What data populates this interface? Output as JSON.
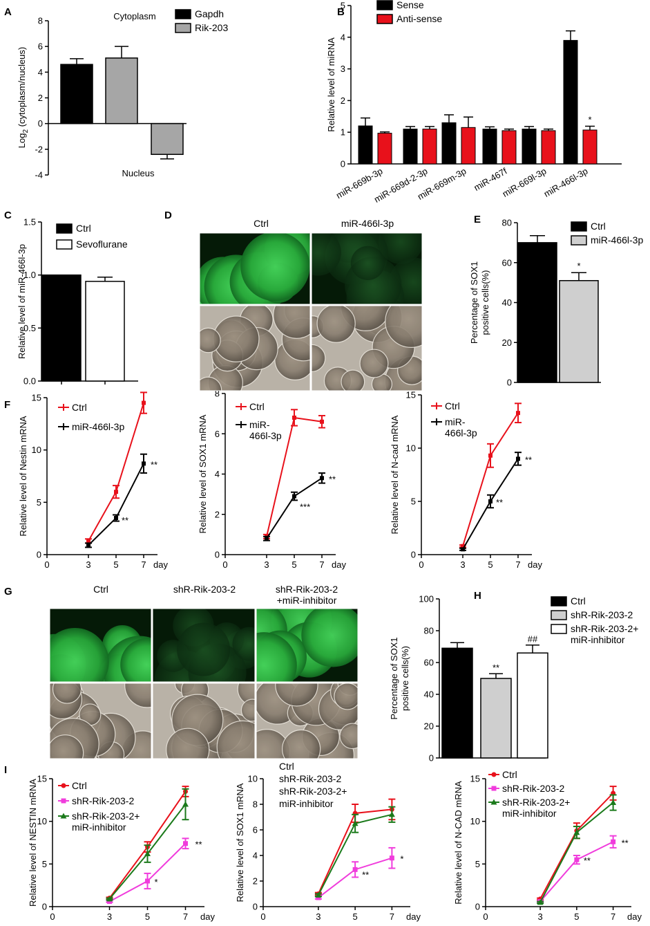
{
  "panels": {
    "A": "A",
    "B": "B",
    "C": "C",
    "D": "D",
    "E": "E",
    "F": "F",
    "G": "G",
    "H": "H",
    "I": "I"
  },
  "colors": {
    "black": "#000000",
    "gray": "#a6a6a6",
    "red": "#e8111b",
    "white": "#ffffff",
    "lightgray": "#cfcfcf",
    "magenta": "#f03cdc",
    "green": "#1b7a1b",
    "fluor": "#2fa84a"
  },
  "chart_data": [
    {
      "id": "A",
      "type": "bar",
      "ylabel": "Log2 (cytoplasm/nucleus)",
      "ylim": [
        -4,
        8
      ],
      "yticks": [
        -4,
        -2,
        0,
        2,
        4,
        6,
        8
      ],
      "legend": [
        "Gapdh",
        "Rik-203"
      ],
      "legend_colors": [
        "#000000",
        "#a6a6a6"
      ],
      "bars": [
        {
          "series": "Gapdh",
          "value": 4.6,
          "err": 0.45,
          "color": "#000000"
        },
        {
          "series": "Rik-203",
          "value": 5.1,
          "err": 0.9,
          "color": "#a6a6a6"
        },
        {
          "series": "Rik-203",
          "value": -2.4,
          "err": 0.35,
          "color": "#a6a6a6"
        }
      ],
      "annotations": [
        "Cytoplasm",
        "Nucleus"
      ]
    },
    {
      "id": "B",
      "type": "bar",
      "ylabel": "Relative level of miRNA",
      "ylim": [
        0,
        5
      ],
      "yticks": [
        0,
        1,
        2,
        3,
        4,
        5
      ],
      "legend": [
        "Sense",
        "Anti-sense"
      ],
      "legend_colors": [
        "#000000",
        "#e8111b"
      ],
      "categories": [
        "miR-669b-3p",
        "miR-669d-2-3p",
        "miR-669m-3p",
        "miR-467f",
        "miR-669l-3p",
        "miR-466l-3p"
      ],
      "series": [
        {
          "name": "Sense",
          "values": [
            1.2,
            1.1,
            1.3,
            1.1,
            1.1,
            3.9
          ],
          "err": [
            0.25,
            0.08,
            0.25,
            0.07,
            0.08,
            0.3
          ]
        },
        {
          "name": "Anti-sense",
          "values": [
            0.97,
            1.1,
            1.15,
            1.05,
            1.05,
            1.07
          ],
          "err": [
            0.04,
            0.08,
            0.33,
            0.05,
            0.05,
            0.12
          ]
        }
      ],
      "significance": [
        {
          "index": 5,
          "series": 1,
          "mark": "*"
        }
      ]
    },
    {
      "id": "C",
      "type": "bar",
      "ylabel": "Relative level of miR-466l-3p",
      "ylim": [
        0,
        1.5
      ],
      "yticks": [
        "0.0",
        "0.5",
        "1.0",
        "1.5"
      ],
      "legend": [
        "Ctrl",
        "Sevoflurane"
      ],
      "series": [
        {
          "name": "Ctrl",
          "value": 1.0,
          "err": 0,
          "color": "#000000"
        },
        {
          "name": "Sevoflurane",
          "value": 0.94,
          "err": 0.04,
          "color": "#ffffff"
        }
      ]
    },
    {
      "id": "E",
      "type": "bar",
      "ylabel": "Percentage of SOX1 positive cells(%)",
      "ylim": [
        0,
        80
      ],
      "yticks": [
        0,
        20,
        40,
        60,
        80
      ],
      "legend": [
        "Ctrl",
        "miR-466l-3p"
      ],
      "series": [
        {
          "name": "Ctrl",
          "value": 70,
          "err": 3.5,
          "color": "#000000"
        },
        {
          "name": "miR-466l-3p",
          "value": 51,
          "err": 4,
          "color": "#cfcfcf",
          "mark": "*"
        }
      ]
    },
    {
      "id": "F1",
      "type": "line",
      "ylabel": "Relative level of Nestin mRNA",
      "xlabel": "day",
      "x": [
        3,
        5,
        7
      ],
      "xlim": [
        0,
        8
      ],
      "xticks": [
        0,
        3,
        5,
        7
      ],
      "ylim": [
        0,
        15
      ],
      "yticks": [
        0,
        5,
        10,
        15
      ],
      "legend": [
        "Ctrl",
        "miR-466l-3p"
      ],
      "series": [
        {
          "name": "Ctrl",
          "values": [
            1.3,
            6.0,
            14.5
          ],
          "err": [
            0.2,
            0.6,
            1.0
          ],
          "color": "#e8111b"
        },
        {
          "name": "miR-466l-3p",
          "values": [
            0.9,
            3.5,
            8.7
          ],
          "err": [
            0.2,
            0.3,
            0.9
          ],
          "color": "#000000",
          "marks": [
            "",
            "**",
            "**"
          ]
        }
      ]
    },
    {
      "id": "F2",
      "type": "line",
      "ylabel": "Relative level of SOX1 mRNA",
      "xlabel": "day",
      "x": [
        3,
        5,
        7
      ],
      "xlim": [
        0,
        8
      ],
      "xticks": [
        0,
        3,
        5,
        7
      ],
      "ylim": [
        0,
        8
      ],
      "yticks": [
        0,
        2,
        4,
        6,
        8
      ],
      "legend": [
        "Ctrl",
        "miR-466l-3p"
      ],
      "legend_lines": [
        [
          "Ctrl"
        ],
        [
          "miR-",
          "466l-3p"
        ]
      ],
      "series": [
        {
          "name": "Ctrl",
          "values": [
            0.9,
            6.8,
            6.6
          ],
          "err": [
            0.1,
            0.4,
            0.3
          ],
          "color": "#e8111b"
        },
        {
          "name": "miR-466l-3p",
          "values": [
            0.8,
            2.9,
            3.8
          ],
          "err": [
            0.1,
            0.2,
            0.25
          ],
          "color": "#000000",
          "marks": [
            "",
            "***",
            "**"
          ]
        }
      ]
    },
    {
      "id": "F3",
      "type": "line",
      "ylabel": "Relative level of N-cad mRNA",
      "xlabel": "day",
      "x": [
        3,
        5,
        7
      ],
      "xlim": [
        0,
        8
      ],
      "xticks": [
        0,
        3,
        5,
        7
      ],
      "ylim": [
        0,
        15
      ],
      "yticks": [
        0,
        5,
        10,
        15
      ],
      "legend": [
        "Ctrl",
        "miR-466l-3p"
      ],
      "legend_lines": [
        [
          "Ctrl"
        ],
        [
          "miR-",
          "466l-3p"
        ]
      ],
      "series": [
        {
          "name": "Ctrl",
          "values": [
            0.8,
            9.3,
            13.3
          ],
          "err": [
            0.1,
            1.1,
            0.9
          ],
          "color": "#e8111b"
        },
        {
          "name": "miR-466l-3p",
          "values": [
            0.5,
            5.0,
            9.0
          ],
          "err": [
            0.1,
            0.6,
            0.6
          ],
          "color": "#000000",
          "marks": [
            "",
            "**",
            "**"
          ]
        }
      ]
    },
    {
      "id": "H",
      "type": "bar",
      "ylabel": "Percentage of SOX1 positive cells(%)",
      "ylim": [
        0,
        100
      ],
      "yticks": [
        0,
        20,
        40,
        60,
        80,
        100
      ],
      "legend": [
        "Ctrl",
        "shR-Rik-203-2",
        "shR-Rik-203-2+ miR-inhibitor"
      ],
      "legend_lines": [
        [
          "Ctrl"
        ],
        [
          "shR-Rik-203-2"
        ],
        [
          "shR-Rik-203-2+",
          "miR-inhibitor"
        ]
      ],
      "series": [
        {
          "name": "Ctrl",
          "value": 69,
          "err": 3.5,
          "color": "#000000"
        },
        {
          "name": "shR-Rik-203-2",
          "value": 50,
          "err": 3,
          "color": "#cfcfcf",
          "mark": "**"
        },
        {
          "name": "shR-Rik-203-2+ miR-inhibitor",
          "value": 66,
          "err": 5,
          "color": "#ffffff",
          "mark": "##"
        }
      ]
    },
    {
      "id": "I1",
      "type": "line",
      "ylabel": "Relative level of NESTIN mRNA",
      "xlabel": "day",
      "x": [
        3,
        5,
        7
      ],
      "xlim": [
        0,
        8
      ],
      "xticks": [
        0,
        3,
        5,
        7
      ],
      "ylim": [
        0,
        15
      ],
      "yticks": [
        0,
        5,
        10,
        15
      ],
      "legend": [
        "Ctrl",
        "shR-Rik-203-2",
        "shR-Rik-203-2+ miR-inhibitor"
      ],
      "legend_lines": [
        [
          "Ctrl"
        ],
        [
          "shR-Rik-203-2"
        ],
        [
          "shR-Rik-203-2+",
          "miR-inhibitor"
        ]
      ],
      "series": [
        {
          "name": "Ctrl",
          "values": [
            1.0,
            7.0,
            13.5
          ],
          "err": [
            0.1,
            0.6,
            0.6
          ],
          "color": "#e8111b"
        },
        {
          "name": "shR-Rik-203-2",
          "values": [
            0.6,
            3.0,
            7.4
          ],
          "err": [
            0.1,
            0.9,
            0.6
          ],
          "color": "#f03cdc",
          "marks": [
            "",
            "*",
            "**"
          ]
        },
        {
          "name": "shR-Rik-203-2+ miR-inhibitor",
          "values": [
            0.9,
            6.2,
            12.0
          ],
          "err": [
            0.1,
            1.0,
            1.8
          ],
          "color": "#1b7a1b"
        }
      ]
    },
    {
      "id": "I2",
      "type": "line",
      "ylabel": "Relative level of SOX1 mRNA",
      "xlabel": "day",
      "x": [
        3,
        5,
        7
      ],
      "xlim": [
        0,
        8
      ],
      "xticks": [
        0,
        3,
        5,
        7
      ],
      "ylim": [
        0,
        10
      ],
      "yticks": [
        0,
        2,
        4,
        6,
        8,
        10
      ],
      "legend": [
        "Ctrl",
        "shR-Rik-203-2",
        "shR-Rik-203-2+ miR-inhibitor"
      ],
      "legend_lines": [
        [
          "Ctrl"
        ],
        [
          "shR-Rik-203-2"
        ],
        [
          "shR-Rik-203-2+",
          "miR-inhibitor"
        ]
      ],
      "series": [
        {
          "name": "Ctrl",
          "values": [
            1.0,
            7.3,
            7.6
          ],
          "err": [
            0.1,
            0.7,
            0.8
          ],
          "color": "#e8111b"
        },
        {
          "name": "shR-Rik-203-2",
          "values": [
            0.7,
            2.9,
            3.8
          ],
          "err": [
            0.1,
            0.6,
            0.8
          ],
          "color": "#f03cdc",
          "marks": [
            "",
            "**",
            "*"
          ]
        },
        {
          "name": "shR-Rik-203-2+ miR-inhibitor",
          "values": [
            0.9,
            6.5,
            7.2
          ],
          "err": [
            0.1,
            0.7,
            0.6
          ],
          "color": "#1b7a1b"
        }
      ]
    },
    {
      "id": "I3",
      "type": "line",
      "ylabel": "Relative level of N-CAD mRNA",
      "xlabel": "day",
      "x": [
        3,
        5,
        7
      ],
      "xlim": [
        0,
        8
      ],
      "xticks": [
        0,
        3,
        5,
        7
      ],
      "ylim": [
        0,
        15
      ],
      "yticks": [
        0,
        5,
        10,
        15
      ],
      "legend": [
        "Ctrl",
        "shR-Rik-203-2",
        "shR-Rik-203-2+ miR-inhibitor"
      ],
      "legend_lines": [
        [
          "Ctrl"
        ],
        [
          "shR-Rik-203-2"
        ],
        [
          "shR-Rik-203-2+",
          "miR-inhibitor"
        ]
      ],
      "series": [
        {
          "name": "Ctrl",
          "values": [
            0.9,
            8.9,
            13.3
          ],
          "err": [
            0.1,
            0.9,
            0.8
          ],
          "color": "#e8111b"
        },
        {
          "name": "shR-Rik-203-2",
          "values": [
            0.6,
            5.5,
            7.6
          ],
          "err": [
            0.1,
            0.5,
            0.7
          ],
          "color": "#f03cdc",
          "marks": [
            "",
            "**",
            "**"
          ]
        },
        {
          "name": "shR-Rik-203-2+ miR-inhibitor",
          "values": [
            0.5,
            8.7,
            12.2
          ],
          "err": [
            0.1,
            0.7,
            0.9
          ],
          "color": "#1b7a1b"
        }
      ]
    }
  ],
  "images": {
    "D": {
      "labels": [
        "Ctrl",
        "miR-466l-3p"
      ]
    },
    "G": {
      "labels": [
        "Ctrl",
        "shR-Rik-203-2",
        "shR-Rik-203-2\n+miR-inhibitor"
      ],
      "label_lines": [
        [
          "Ctrl"
        ],
        [
          "shR-Rik-203-2"
        ],
        [
          "shR-Rik-203-2",
          "+miR-inhibitor"
        ]
      ]
    }
  }
}
